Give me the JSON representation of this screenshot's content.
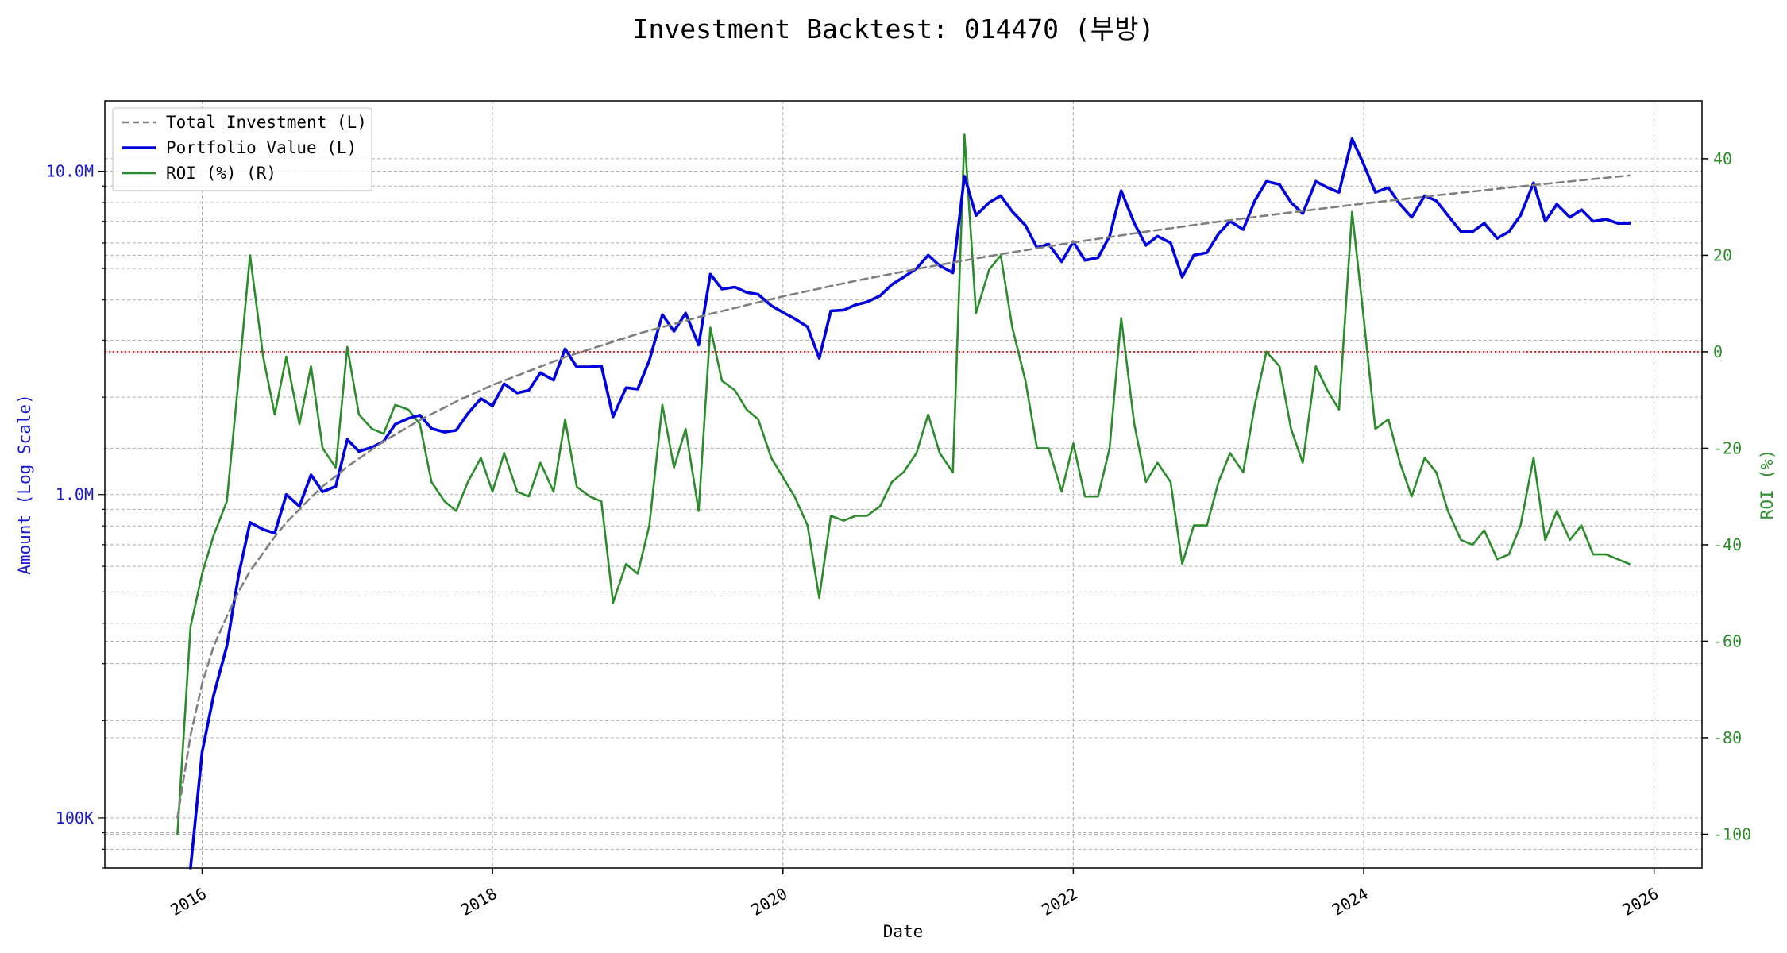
{
  "chart_data": {
    "type": "line",
    "title": "Investment Backtest: 014470 (부방)",
    "xlabel": "Date",
    "ylabel_left": "Amount (Log Scale)",
    "ylabel_right": "ROI (%)",
    "x_ticks": [
      "2016",
      "2018",
      "2020",
      "2022",
      "2024",
      "2026"
    ],
    "y_left_ticks": [
      {
        "value": 100000,
        "label": "100K"
      },
      {
        "value": 1000000,
        "label": "1.0M"
      },
      {
        "value": 10000000,
        "label": "10.0M"
      }
    ],
    "y_right_ticks": [
      "40",
      "20",
      "0",
      "-20",
      "-40",
      "-60",
      "-80",
      "-100"
    ],
    "ylim_left": [
      70000,
      16500000
    ],
    "ylim_right": [
      -107,
      52
    ],
    "xlim": [
      2015.33,
      2026.33
    ],
    "y_left_scale": "log",
    "grid": true,
    "legend_position": "top-left",
    "reference_line": {
      "axis": "right",
      "value": 0,
      "color": "#d62728",
      "style": "dotted"
    },
    "colors": {
      "total_investment": "#7f7f7f",
      "portfolio_value": "#0000dd",
      "roi": "#2c8c2c",
      "left_axis_text": "#1a1acc",
      "right_axis_text": "#2c8c2c"
    },
    "series": [
      {
        "name": "Total Investment (L)",
        "axis": "left",
        "style": "dashed",
        "points": [
          [
            2015.83,
            100000
          ],
          [
            2015.92,
            180000
          ],
          [
            2016.0,
            260000
          ],
          [
            2016.08,
            340000
          ],
          [
            2016.17,
            420000
          ],
          [
            2016.25,
            500000
          ],
          [
            2016.33,
            580000
          ],
          [
            2016.42,
            660000
          ],
          [
            2016.5,
            740000
          ],
          [
            2016.58,
            820000
          ],
          [
            2016.67,
            900000
          ],
          [
            2016.75,
            980000
          ],
          [
            2016.83,
            1060000
          ],
          [
            2016.92,
            1140000
          ],
          [
            2017.0,
            1220000
          ],
          [
            2017.25,
            1460000
          ],
          [
            2017.5,
            1700000
          ],
          [
            2017.75,
            1940000
          ],
          [
            2018.0,
            2180000
          ],
          [
            2018.5,
            2660000
          ],
          [
            2019.0,
            3140000
          ],
          [
            2019.5,
            3620000
          ],
          [
            2020.0,
            4100000
          ],
          [
            2020.5,
            4580000
          ],
          [
            2021.0,
            5060000
          ],
          [
            2021.5,
            5540000
          ],
          [
            2022.0,
            6020000
          ],
          [
            2022.5,
            6500000
          ],
          [
            2023.0,
            6980000
          ],
          [
            2023.5,
            7460000
          ],
          [
            2024.0,
            7940000
          ],
          [
            2024.5,
            8420000
          ],
          [
            2025.0,
            8900000
          ],
          [
            2025.5,
            9380000
          ],
          [
            2025.83,
            9700000
          ]
        ]
      },
      {
        "name": "Portfolio Value (L)",
        "axis": "left",
        "style": "solid",
        "points": [
          [
            2015.92,
            70000
          ],
          [
            2016.0,
            160000
          ],
          [
            2016.08,
            240000
          ],
          [
            2016.17,
            340000
          ],
          [
            2016.25,
            560000
          ],
          [
            2016.33,
            820000
          ],
          [
            2016.42,
            780000
          ],
          [
            2016.5,
            760000
          ],
          [
            2016.58,
            1000000
          ],
          [
            2016.67,
            920000
          ],
          [
            2016.75,
            1150000
          ],
          [
            2016.83,
            1020000
          ],
          [
            2016.92,
            1060000
          ],
          [
            2017.0,
            1480000
          ],
          [
            2017.08,
            1360000
          ],
          [
            2017.17,
            1400000
          ],
          [
            2017.25,
            1460000
          ],
          [
            2017.33,
            1650000
          ],
          [
            2017.42,
            1720000
          ],
          [
            2017.5,
            1760000
          ],
          [
            2017.58,
            1600000
          ],
          [
            2017.67,
            1560000
          ],
          [
            2017.75,
            1580000
          ],
          [
            2017.83,
            1780000
          ],
          [
            2017.92,
            1980000
          ],
          [
            2018.0,
            1880000
          ],
          [
            2018.08,
            2200000
          ],
          [
            2018.17,
            2060000
          ],
          [
            2018.25,
            2100000
          ],
          [
            2018.33,
            2380000
          ],
          [
            2018.42,
            2260000
          ],
          [
            2018.5,
            2820000
          ],
          [
            2018.58,
            2480000
          ],
          [
            2018.67,
            2480000
          ],
          [
            2018.75,
            2500000
          ],
          [
            2018.83,
            1740000
          ],
          [
            2018.92,
            2140000
          ],
          [
            2019.0,
            2120000
          ],
          [
            2019.08,
            2600000
          ],
          [
            2019.17,
            3600000
          ],
          [
            2019.25,
            3200000
          ],
          [
            2019.33,
            3640000
          ],
          [
            2019.42,
            2900000
          ],
          [
            2019.5,
            4800000
          ],
          [
            2019.58,
            4320000
          ],
          [
            2019.67,
            4380000
          ],
          [
            2019.75,
            4220000
          ],
          [
            2019.83,
            4160000
          ],
          [
            2019.92,
            3840000
          ],
          [
            2020.0,
            3660000
          ],
          [
            2020.08,
            3500000
          ],
          [
            2020.17,
            3300000
          ],
          [
            2020.25,
            2640000
          ],
          [
            2020.33,
            3700000
          ],
          [
            2020.42,
            3720000
          ],
          [
            2020.5,
            3860000
          ],
          [
            2020.58,
            3940000
          ],
          [
            2020.67,
            4120000
          ],
          [
            2020.75,
            4460000
          ],
          [
            2020.83,
            4700000
          ],
          [
            2020.92,
            5000000
          ],
          [
            2021.0,
            5500000
          ],
          [
            2021.08,
            5100000
          ],
          [
            2021.17,
            4850000
          ],
          [
            2021.25,
            9650000
          ],
          [
            2021.33,
            7300000
          ],
          [
            2021.42,
            8000000
          ],
          [
            2021.5,
            8400000
          ],
          [
            2021.58,
            7500000
          ],
          [
            2021.67,
            6800000
          ],
          [
            2021.75,
            5800000
          ],
          [
            2021.83,
            5950000
          ],
          [
            2021.92,
            5250000
          ],
          [
            2022.0,
            6050000
          ],
          [
            2022.08,
            5300000
          ],
          [
            2022.17,
            5400000
          ],
          [
            2022.25,
            6300000
          ],
          [
            2022.33,
            8700000
          ],
          [
            2022.42,
            6900000
          ],
          [
            2022.5,
            5900000
          ],
          [
            2022.58,
            6300000
          ],
          [
            2022.67,
            6000000
          ],
          [
            2022.75,
            4700000
          ],
          [
            2022.83,
            5500000
          ],
          [
            2022.92,
            5600000
          ],
          [
            2023.0,
            6400000
          ],
          [
            2023.08,
            7000000
          ],
          [
            2023.17,
            6600000
          ],
          [
            2023.25,
            8100000
          ],
          [
            2023.33,
            9300000
          ],
          [
            2023.42,
            9100000
          ],
          [
            2023.5,
            8000000
          ],
          [
            2023.58,
            7400000
          ],
          [
            2023.67,
            9300000
          ],
          [
            2023.75,
            8900000
          ],
          [
            2023.83,
            8600000
          ],
          [
            2023.92,
            12600000
          ],
          [
            2024.0,
            10500000
          ],
          [
            2024.08,
            8600000
          ],
          [
            2024.17,
            8900000
          ],
          [
            2024.25,
            7900000
          ],
          [
            2024.33,
            7200000
          ],
          [
            2024.42,
            8400000
          ],
          [
            2024.5,
            8100000
          ],
          [
            2024.58,
            7300000
          ],
          [
            2024.67,
            6500000
          ],
          [
            2024.75,
            6500000
          ],
          [
            2024.83,
            6900000
          ],
          [
            2024.92,
            6200000
          ],
          [
            2025.0,
            6500000
          ],
          [
            2025.08,
            7300000
          ],
          [
            2025.17,
            9200000
          ],
          [
            2025.25,
            7000000
          ],
          [
            2025.33,
            7900000
          ],
          [
            2025.42,
            7200000
          ],
          [
            2025.5,
            7600000
          ],
          [
            2025.58,
            7000000
          ],
          [
            2025.67,
            7100000
          ],
          [
            2025.75,
            6900000
          ],
          [
            2025.83,
            6900000
          ]
        ]
      },
      {
        "name": "ROI (%) (R)",
        "axis": "right",
        "style": "solid",
        "points": [
          [
            2015.83,
            -100
          ],
          [
            2015.92,
            -57
          ],
          [
            2016.0,
            -46
          ],
          [
            2016.08,
            -38
          ],
          [
            2016.17,
            -31
          ],
          [
            2016.25,
            -6
          ],
          [
            2016.33,
            20
          ],
          [
            2016.42,
            -1
          ],
          [
            2016.5,
            -13
          ],
          [
            2016.58,
            -1
          ],
          [
            2016.67,
            -15
          ],
          [
            2016.75,
            -3
          ],
          [
            2016.83,
            -20
          ],
          [
            2016.92,
            -24
          ],
          [
            2017.0,
            1
          ],
          [
            2017.08,
            -13
          ],
          [
            2017.17,
            -16
          ],
          [
            2017.25,
            -17
          ],
          [
            2017.33,
            -11
          ],
          [
            2017.42,
            -12
          ],
          [
            2017.5,
            -15
          ],
          [
            2017.58,
            -27
          ],
          [
            2017.67,
            -31
          ],
          [
            2017.75,
            -33
          ],
          [
            2017.83,
            -27
          ],
          [
            2017.92,
            -22
          ],
          [
            2018.0,
            -29
          ],
          [
            2018.08,
            -21
          ],
          [
            2018.17,
            -29
          ],
          [
            2018.25,
            -30
          ],
          [
            2018.33,
            -23
          ],
          [
            2018.42,
            -29
          ],
          [
            2018.5,
            -14
          ],
          [
            2018.58,
            -28
          ],
          [
            2018.67,
            -30
          ],
          [
            2018.75,
            -31
          ],
          [
            2018.83,
            -52
          ],
          [
            2018.92,
            -44
          ],
          [
            2019.0,
            -46
          ],
          [
            2019.08,
            -36
          ],
          [
            2019.17,
            -11
          ],
          [
            2019.25,
            -24
          ],
          [
            2019.33,
            -16
          ],
          [
            2019.42,
            -33
          ],
          [
            2019.5,
            5
          ],
          [
            2019.58,
            -6
          ],
          [
            2019.67,
            -8
          ],
          [
            2019.75,
            -12
          ],
          [
            2019.83,
            -14
          ],
          [
            2019.92,
            -22
          ],
          [
            2020.0,
            -26
          ],
          [
            2020.08,
            -30
          ],
          [
            2020.17,
            -36
          ],
          [
            2020.25,
            -51
          ],
          [
            2020.33,
            -34
          ],
          [
            2020.42,
            -35
          ],
          [
            2020.5,
            -34
          ],
          [
            2020.58,
            -34
          ],
          [
            2020.67,
            -32
          ],
          [
            2020.75,
            -27
          ],
          [
            2020.83,
            -25
          ],
          [
            2020.92,
            -21
          ],
          [
            2021.0,
            -13
          ],
          [
            2021.08,
            -21
          ],
          [
            2021.17,
            -25
          ],
          [
            2021.25,
            45
          ],
          [
            2021.33,
            8
          ],
          [
            2021.42,
            17
          ],
          [
            2021.5,
            20
          ],
          [
            2021.58,
            5
          ],
          [
            2021.67,
            -6
          ],
          [
            2021.75,
            -20
          ],
          [
            2021.83,
            -20
          ],
          [
            2021.92,
            -29
          ],
          [
            2022.0,
            -19
          ],
          [
            2022.08,
            -30
          ],
          [
            2022.17,
            -30
          ],
          [
            2022.25,
            -20
          ],
          [
            2022.33,
            7
          ],
          [
            2022.42,
            -15
          ],
          [
            2022.5,
            -27
          ],
          [
            2022.58,
            -23
          ],
          [
            2022.67,
            -27
          ],
          [
            2022.75,
            -44
          ],
          [
            2022.83,
            -36
          ],
          [
            2022.92,
            -36
          ],
          [
            2023.0,
            -27
          ],
          [
            2023.08,
            -21
          ],
          [
            2023.17,
            -25
          ],
          [
            2023.25,
            -11
          ],
          [
            2023.33,
            0
          ],
          [
            2023.42,
            -3
          ],
          [
            2023.5,
            -16
          ],
          [
            2023.58,
            -23
          ],
          [
            2023.67,
            -3
          ],
          [
            2023.75,
            -8
          ],
          [
            2023.83,
            -12
          ],
          [
            2023.92,
            29
          ],
          [
            2024.0,
            7
          ],
          [
            2024.08,
            -16
          ],
          [
            2024.17,
            -14
          ],
          [
            2024.25,
            -23
          ],
          [
            2024.33,
            -30
          ],
          [
            2024.42,
            -22
          ],
          [
            2024.5,
            -25
          ],
          [
            2024.58,
            -33
          ],
          [
            2024.67,
            -39
          ],
          [
            2024.75,
            -40
          ],
          [
            2024.83,
            -37
          ],
          [
            2024.92,
            -43
          ],
          [
            2025.0,
            -42
          ],
          [
            2025.08,
            -36
          ],
          [
            2025.17,
            -22
          ],
          [
            2025.25,
            -39
          ],
          [
            2025.33,
            -33
          ],
          [
            2025.42,
            -39
          ],
          [
            2025.5,
            -36
          ],
          [
            2025.58,
            -42
          ],
          [
            2025.67,
            -42
          ],
          [
            2025.75,
            -43
          ],
          [
            2025.83,
            -44
          ]
        ]
      }
    ]
  }
}
